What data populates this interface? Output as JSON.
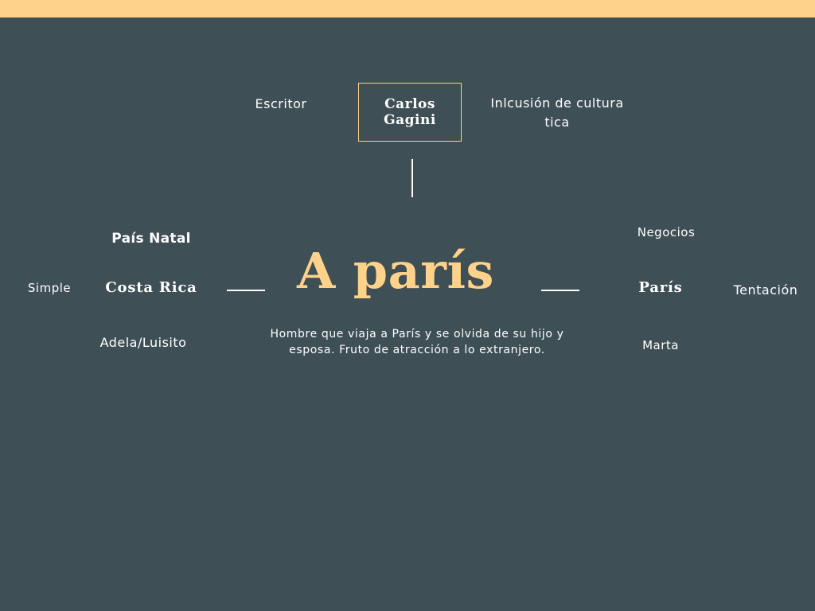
{
  "top_bar_color": "#fed28a",
  "background_color": "#3e4f55",
  "accent_color": "#fed28a",
  "author": {
    "label": "Escritor",
    "name": "Carlos Gagini",
    "inclusion": "Inlcusión de cultura tica"
  },
  "work": {
    "title": "A parís",
    "summary": "Hombre que viaja a París y se olvida de su hijo y esposa. Fruto de atracción a lo extranjero."
  },
  "left_branch": {
    "heading": "País Natal",
    "place": "Costa Rica",
    "side_note": "Simple",
    "characters": "Adela/Luisito"
  },
  "right_branch": {
    "heading": "Negocios",
    "place": "París",
    "side_note": "Tentación",
    "characters": "Marta"
  }
}
